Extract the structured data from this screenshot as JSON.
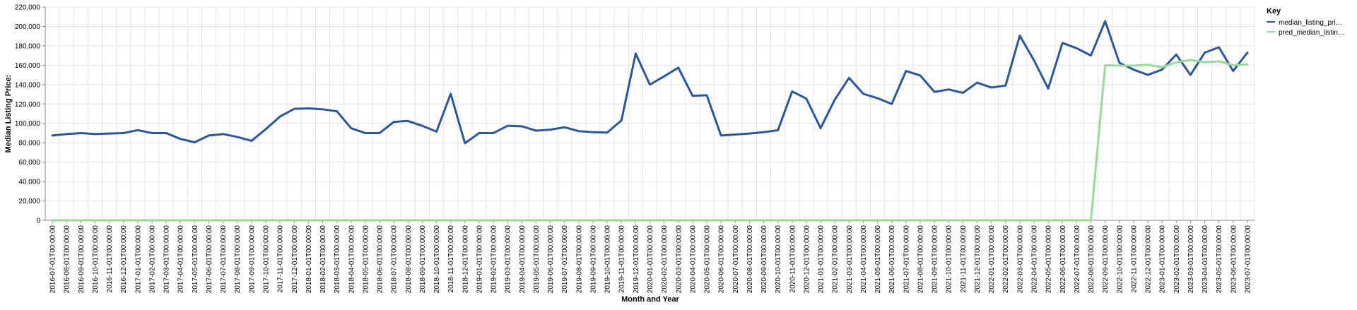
{
  "chart_data": {
    "type": "line",
    "xlabel": "Month and Year",
    "ylabel": "Median Listing Price:",
    "ylim": [
      0,
      220000
    ],
    "yticks": [
      "0",
      "20,000",
      "40,000",
      "60,000",
      "80,000",
      "100,000",
      "120,000",
      "140,000",
      "160,000",
      "180,000",
      "200,000",
      "220,000"
    ],
    "ytick_values": [
      0,
      20000,
      40000,
      60000,
      80000,
      100000,
      120000,
      140000,
      160000,
      180000,
      200000,
      220000
    ],
    "grid": true,
    "legend_position": "top-right",
    "legend_title": "Key",
    "x": [
      "2016-07-01T00:00:00",
      "2016-08-01T00:00:00",
      "2016-09-01T00:00:00",
      "2016-10-01T00:00:00",
      "2016-11-01T00:00:00",
      "2016-12-01T00:00:00",
      "2017-01-01T00:00:00",
      "2017-02-01T00:00:00",
      "2017-03-01T00:00:00",
      "2017-04-01T00:00:00",
      "2017-05-01T00:00:00",
      "2017-06-01T00:00:00",
      "2017-07-01T00:00:00",
      "2017-08-01T00:00:00",
      "2017-09-01T00:00:00",
      "2017-10-01T00:00:00",
      "2017-11-01T00:00:00",
      "2017-12-01T00:00:00",
      "2018-01-01T00:00:00",
      "2018-02-01T00:00:00",
      "2018-03-01T00:00:00",
      "2018-04-01T00:00:00",
      "2018-05-01T00:00:00",
      "2018-06-01T00:00:00",
      "2018-07-01T00:00:00",
      "2018-08-01T00:00:00",
      "2018-09-01T00:00:00",
      "2018-10-01T00:00:00",
      "2018-11-01T00:00:00",
      "2018-12-01T00:00:00",
      "2019-01-01T00:00:00",
      "2019-02-01T00:00:00",
      "2019-03-01T00:00:00",
      "2019-04-01T00:00:00",
      "2019-05-01T00:00:00",
      "2019-06-01T00:00:00",
      "2019-07-01T00:00:00",
      "2019-08-01T00:00:00",
      "2019-09-01T00:00:00",
      "2019-10-01T00:00:00",
      "2019-11-01T00:00:00",
      "2019-12-01T00:00:00",
      "2020-01-01T00:00:00",
      "2020-02-01T00:00:00",
      "2020-03-01T00:00:00",
      "2020-04-01T00:00:00",
      "2020-05-01T00:00:00",
      "2020-06-01T00:00:00",
      "2020-07-01T00:00:00",
      "2020-08-01T00:00:00",
      "2020-09-01T00:00:00",
      "2020-10-01T00:00:00",
      "2020-11-01T00:00:00",
      "2020-12-01T00:00:00",
      "2021-01-01T00:00:00",
      "2021-02-01T00:00:00",
      "2021-03-01T00:00:00",
      "2021-04-01T00:00:00",
      "2021-05-01T00:00:00",
      "2021-06-01T00:00:00",
      "2021-07-01T00:00:00",
      "2021-08-01T00:00:00",
      "2021-09-01T00:00:00",
      "2021-10-01T00:00:00",
      "2021-11-01T00:00:00",
      "2021-12-01T00:00:00",
      "2022-01-01T00:00:00",
      "2022-02-01T00:00:00",
      "2022-03-01T00:00:00",
      "2022-04-01T00:00:00",
      "2022-05-01T00:00:00",
      "2022-06-01T00:00:00",
      "2022-07-01T00:00:00",
      "2022-08-01T00:00:00",
      "2022-09-01T00:00:00",
      "2022-10-01T00:00:00",
      "2022-11-01T00:00:00",
      "2022-12-01T00:00:00",
      "2023-01-01T00:00:00",
      "2023-02-01T00:00:00",
      "2023-03-01T00:00:00",
      "2023-04-01T00:00:00",
      "2023-05-01T00:00:00",
      "2023-06-01T00:00:00",
      "2023-07-01T00:00:00"
    ],
    "series": [
      {
        "name": "median_listing_pri…",
        "color": "#2b579a",
        "values": [
          87500,
          89000,
          90000,
          89000,
          89500,
          90000,
          93000,
          90000,
          90000,
          84000,
          80500,
          87500,
          89000,
          86000,
          82000,
          94000,
          107000,
          115000,
          115500,
          114500,
          112500,
          95000,
          90000,
          90000,
          101500,
          102500,
          97500,
          91500,
          130500,
          79500,
          90000,
          90000,
          97500,
          97000,
          92500,
          93500,
          96000,
          92000,
          91000,
          90500,
          103000,
          172000,
          140000,
          148500,
          157500,
          128500,
          129000,
          87500,
          88500,
          89500,
          91000,
          93000,
          133000,
          125500,
          95000,
          124500,
          147000,
          130500,
          126000,
          120000,
          154000,
          149500,
          132500,
          135000,
          131500,
          142000,
          137000,
          139000,
          190500,
          165000,
          136000,
          183000,
          177500,
          170000,
          205500,
          162500,
          155500,
          150000,
          155500,
          171000,
          150000,
          173000,
          178500,
          154000,
          173000
        ]
      },
      {
        "name": "pred_median_listin…",
        "color": "#98d99a",
        "values": [
          0,
          0,
          0,
          0,
          0,
          0,
          0,
          0,
          0,
          0,
          0,
          0,
          0,
          0,
          0,
          0,
          0,
          0,
          0,
          0,
          0,
          0,
          0,
          0,
          0,
          0,
          0,
          0,
          0,
          0,
          0,
          0,
          0,
          0,
          0,
          0,
          0,
          0,
          0,
          0,
          0,
          0,
          0,
          0,
          0,
          0,
          0,
          0,
          0,
          0,
          0,
          0,
          0,
          0,
          0,
          0,
          0,
          0,
          0,
          0,
          0,
          0,
          0,
          0,
          0,
          0,
          0,
          0,
          0,
          0,
          0,
          0,
          0,
          0,
          160000,
          159500,
          159500,
          160500,
          158000,
          163000,
          165500,
          163000,
          164000,
          160000,
          161000
        ]
      }
    ]
  }
}
